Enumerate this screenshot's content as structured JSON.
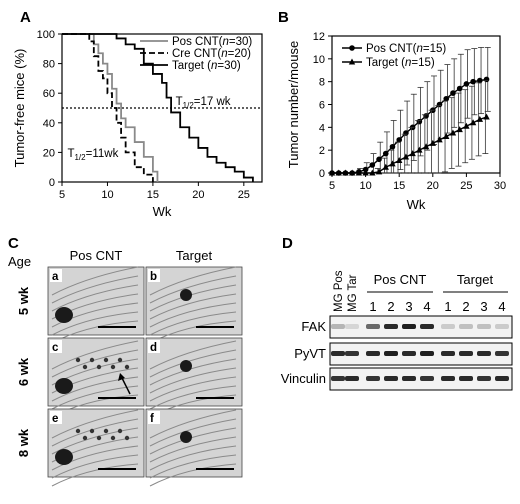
{
  "panels": {
    "A": "A",
    "B": "B",
    "C": "C",
    "D": "D"
  },
  "chart_data": [
    {
      "id": "A",
      "type": "line",
      "ylabel": "Tumor-free mice (%)",
      "xlabel": "Wk",
      "xlim": [
        5,
        27
      ],
      "ylim": [
        0,
        100
      ],
      "xticks": [
        "5",
        "10",
        "15",
        "20",
        "25"
      ],
      "yticks": [
        "0",
        "20",
        "40",
        "60",
        "80",
        "100"
      ],
      "legend_pos": "top-right",
      "series": [
        {
          "name": "Pos CNT(n=30)",
          "legend_prefix": "Pos CNT(",
          "legend_n": "n",
          "legend_rest": "=30)",
          "style": "gray",
          "x": [
            5,
            8,
            8.5,
            9,
            9.5,
            10,
            10.5,
            11,
            11.5,
            12,
            13,
            14,
            15,
            15.5
          ],
          "y": [
            100,
            100,
            93,
            87,
            80,
            73,
            63,
            53,
            43,
            37,
            27,
            17,
            7,
            0
          ]
        },
        {
          "name": "Cre CNT(n=20)",
          "legend_prefix": "Cre CNT(",
          "legend_n": "n",
          "legend_rest": "=20)",
          "style": "dashed",
          "x": [
            5,
            7.5,
            8,
            8.5,
            9,
            9.5,
            10,
            10.5,
            11,
            11.5,
            12,
            13,
            14,
            15
          ],
          "y": [
            100,
            100,
            95,
            85,
            75,
            70,
            60,
            50,
            40,
            30,
            20,
            10,
            5,
            0
          ]
        },
        {
          "name": "Target (n=30)",
          "legend_prefix": "Target (",
          "legend_n": "n",
          "legend_rest": "=30)",
          "style": "solid",
          "x": [
            5,
            10,
            11,
            12,
            13,
            14,
            15,
            16,
            16.5,
            17,
            18,
            19,
            20,
            21,
            22,
            23,
            24,
            25,
            26
          ],
          "y": [
            100,
            100,
            97,
            93,
            90,
            80,
            73,
            67,
            57,
            47,
            37,
            30,
            23,
            17,
            13,
            10,
            7,
            3,
            0
          ]
        }
      ],
      "reference_line": {
        "y": 50,
        "style": "dotted"
      },
      "annotations": [
        {
          "sub": "1/2",
          "text": "=17 wk",
          "x": 17.5,
          "y": 52
        },
        {
          "sub": "1/2",
          "text": "=11wk",
          "x": 5.6,
          "y": 17
        }
      ],
      "annotation_base": "T"
    },
    {
      "id": "B",
      "type": "line",
      "ylabel": "Tumor number/mouse",
      "xlabel": "Wk",
      "xlim": [
        5,
        30
      ],
      "ylim": [
        0,
        12
      ],
      "xticks": [
        "5",
        "10",
        "15",
        "20",
        "25",
        "30"
      ],
      "yticks": [
        "0",
        "2",
        "4",
        "6",
        "8",
        "10",
        "12"
      ],
      "legend_pos": "top-left",
      "series": [
        {
          "name": "Pos CNT(n=15)",
          "legend_prefix": "Pos CNT(",
          "legend_n": "n",
          "legend_rest": "=15)",
          "marker": "circle",
          "x": [
            5,
            6,
            7,
            8,
            9,
            10,
            11,
            12,
            13,
            14,
            15,
            16,
            17,
            18,
            19,
            20,
            21,
            22,
            23,
            24,
            25,
            26,
            27,
            28
          ],
          "y": [
            0,
            0,
            0,
            0,
            0.1,
            0.3,
            0.7,
            1.2,
            1.7,
            2.3,
            2.9,
            3.5,
            4.0,
            4.5,
            5.0,
            5.5,
            6.0,
            6.5,
            7.0,
            7.4,
            7.8,
            8.0,
            8.1,
            8.2
          ],
          "err": [
            0,
            0,
            0,
            0,
            0.3,
            0.6,
            1.0,
            1.5,
            1.9,
            2.3,
            2.6,
            2.8,
            2.9,
            3.0,
            3.0,
            3.0,
            3.0,
            3.0,
            3.0,
            3.0,
            3.0,
            2.9,
            2.9,
            2.8
          ]
        },
        {
          "name": "Target (n=15)",
          "legend_prefix": "Target (",
          "legend_n": "n",
          "legend_rest": "=15)",
          "marker": "triangle",
          "x": [
            5,
            6,
            7,
            8,
            9,
            10,
            11,
            12,
            13,
            14,
            15,
            16,
            17,
            18,
            19,
            20,
            21,
            22,
            23,
            24,
            25,
            26,
            27,
            28
          ],
          "y": [
            0,
            0,
            0,
            0,
            0,
            0,
            0,
            0.1,
            0.5,
            0.8,
            1.1,
            1.4,
            1.7,
            2.0,
            2.3,
            2.6,
            2.9,
            3.2,
            3.5,
            3.8,
            4.1,
            4.4,
            4.7,
            4.9
          ],
          "err": [
            0,
            0,
            0,
            0,
            0,
            0,
            0,
            0.3,
            0.8,
            1.2,
            1.6,
            2.0,
            2.3,
            2.6,
            2.8,
            2.9,
            3.0,
            3.1,
            3.1,
            3.2,
            3.2,
            3.2,
            3.2,
            3.2
          ]
        }
      ]
    }
  ],
  "panel_c": {
    "age_label": "Age",
    "col_headers": [
      "Pos CNT",
      "Target"
    ],
    "rows": [
      {
        "age": "5 wk",
        "cells": [
          "a",
          "b"
        ]
      },
      {
        "age": "6 wk",
        "cells": [
          "c",
          "d"
        ]
      },
      {
        "age": "8 wk",
        "cells": [
          "e",
          "f"
        ]
      }
    ]
  },
  "panel_d": {
    "lane_labels": [
      "MG Pos",
      "MG Tar",
      "1",
      "2",
      "3",
      "4",
      "1",
      "2",
      "3",
      "4"
    ],
    "group_labels": [
      "Pos CNT",
      "Target"
    ],
    "blots": [
      {
        "label": "FAK",
        "intensities": [
          0.25,
          0.1,
          0.6,
          0.9,
          0.95,
          0.9,
          0.15,
          0.2,
          0.2,
          0.15
        ]
      },
      {
        "label": "PyVT",
        "intensities": [
          0.9,
          0.85,
          0.9,
          0.95,
          0.9,
          0.95,
          0.9,
          0.9,
          0.9,
          0.85
        ]
      },
      {
        "label": "Vinculin",
        "intensities": [
          0.85,
          0.9,
          0.85,
          0.9,
          0.9,
          0.85,
          0.9,
          0.9,
          0.85,
          0.9
        ]
      }
    ]
  }
}
